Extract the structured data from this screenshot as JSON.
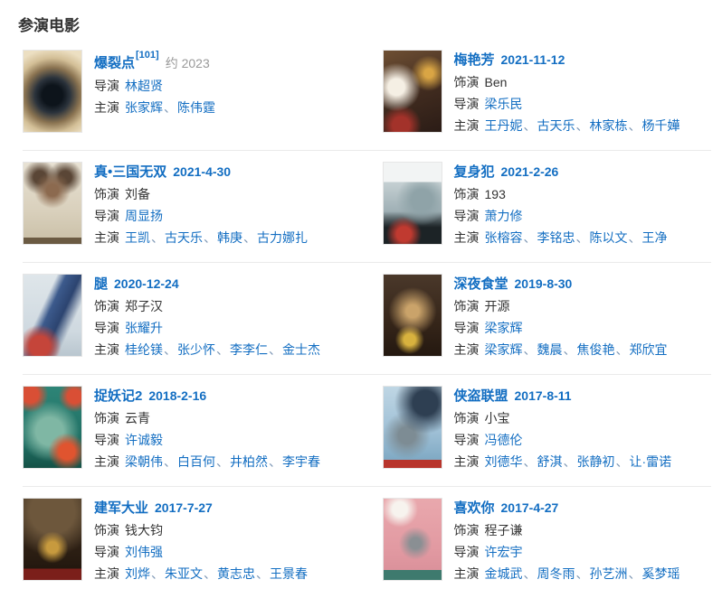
{
  "section": {
    "title": "参演电影"
  },
  "labels": {
    "role": "饰演",
    "director": "导演",
    "starring": "主演",
    "name_separator": "、"
  },
  "colors": {
    "link_blue": "#136ec2",
    "text_dark": "#333333",
    "muted_gray": "#999999",
    "divider": "#eaeaea"
  },
  "movies": [
    {
      "title": "爆裂点",
      "ref": "[101]",
      "date": "约 2023",
      "date_muted": true,
      "role": null,
      "directors": [
        "林超贤"
      ],
      "stars": [
        "张家辉",
        "陈伟霆"
      ]
    },
    {
      "title": "梅艳芳",
      "ref": null,
      "date": "2021-11-12",
      "date_muted": false,
      "role": "Ben",
      "directors": [
        "梁乐民"
      ],
      "stars": [
        "王丹妮",
        "古天乐",
        "林家栋",
        "杨千嬅"
      ]
    },
    {
      "title": "真•三国无双",
      "ref": null,
      "date": "2021-4-30",
      "date_muted": false,
      "role": "刘备",
      "directors": [
        "周显扬"
      ],
      "stars": [
        "王凯",
        "古天乐",
        "韩庚",
        "古力娜扎"
      ]
    },
    {
      "title": "复身犯",
      "ref": null,
      "date": "2021-2-26",
      "date_muted": false,
      "role": "193",
      "directors": [
        "萧力修"
      ],
      "stars": [
        "张榕容",
        "李铭忠",
        "陈以文",
        "王净"
      ]
    },
    {
      "title": "腿",
      "ref": null,
      "date": "2020-12-24",
      "date_muted": false,
      "role": "郑子汉",
      "directors": [
        "张耀升"
      ],
      "stars": [
        "桂纶镁",
        "张少怀",
        "李李仁",
        "金士杰"
      ]
    },
    {
      "title": "深夜食堂",
      "ref": null,
      "date": "2019-8-30",
      "date_muted": false,
      "role": "开源",
      "directors": [
        "梁家辉"
      ],
      "stars": [
        "梁家辉",
        "魏晨",
        "焦俊艳",
        "郑欣宜"
      ]
    },
    {
      "title": "捉妖记2",
      "ref": null,
      "date": "2018-2-16",
      "date_muted": false,
      "role": "云青",
      "directors": [
        "许诚毅"
      ],
      "stars": [
        "梁朝伟",
        "白百何",
        "井柏然",
        "李宇春"
      ]
    },
    {
      "title": "侠盗联盟",
      "ref": null,
      "date": "2017-8-11",
      "date_muted": false,
      "role": "小宝",
      "directors": [
        "冯德伦"
      ],
      "stars": [
        "刘德华",
        "舒淇",
        "张静初",
        "让·雷诺"
      ]
    },
    {
      "title": "建军大业",
      "ref": null,
      "date": "2017-7-27",
      "date_muted": false,
      "role": "钱大钧",
      "directors": [
        "刘伟强"
      ],
      "stars": [
        "刘烨",
        "朱亚文",
        "黄志忠",
        "王景春"
      ]
    },
    {
      "title": "喜欢你",
      "ref": null,
      "date": "2017-4-27",
      "date_muted": false,
      "role": "程子谦",
      "directors": [
        "许宏宇"
      ],
      "stars": [
        "金城武",
        "周冬雨",
        "孙艺洲",
        "奚梦瑶"
      ]
    }
  ]
}
